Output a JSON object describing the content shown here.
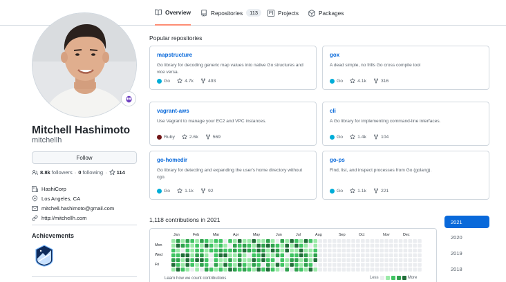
{
  "tabs": [
    {
      "label": "Overview",
      "active": true,
      "icon": "book-icon"
    },
    {
      "label": "Repositories",
      "count": "113",
      "icon": "repo-icon"
    },
    {
      "label": "Projects",
      "icon": "project-icon"
    },
    {
      "label": "Packages",
      "icon": "package-icon"
    }
  ],
  "profile": {
    "full_name": "Mitchell Hashimoto",
    "login": "mitchellh",
    "follow_label": "Follow",
    "followers": "8.8k",
    "followers_label": "followers",
    "following": "0",
    "following_label": "following",
    "stars": "114",
    "company": "HashiCorp",
    "location": "Los Angeles, CA",
    "email": "mitchell.hashimoto@gmail.com",
    "website": "http://mitchellh.com",
    "achievements_title": "Achievements"
  },
  "popular": {
    "title": "Popular repositories",
    "repos": [
      {
        "name": "mapstructure",
        "desc": "Go library for decoding generic map values into native Go structures and vice versa.",
        "lang": "Go",
        "lang_color": "#00add8",
        "stars": "4.7k",
        "forks": "493"
      },
      {
        "name": "gox",
        "desc": "A dead simple, no frills Go cross compile tool",
        "lang": "Go",
        "lang_color": "#00add8",
        "stars": "4.1k",
        "forks": "316"
      },
      {
        "name": "vagrant-aws",
        "desc": "Use Vagrant to manage your EC2 and VPC instances.",
        "lang": "Ruby",
        "lang_color": "#701516",
        "stars": "2.6k",
        "forks": "569"
      },
      {
        "name": "cli",
        "desc": "A Go library for implementing command-line interfaces.",
        "lang": "Go",
        "lang_color": "#00add8",
        "stars": "1.4k",
        "forks": "104"
      },
      {
        "name": "go-homedir",
        "desc": "Go library for detecting and expanding the user's home directory without cgo.",
        "lang": "Go",
        "lang_color": "#00add8",
        "stars": "1.1k",
        "forks": "92"
      },
      {
        "name": "go-ps",
        "desc": "Find, list, and inspect processes from Go (golang).",
        "lang": "Go",
        "lang_color": "#00add8",
        "stars": "1.1k",
        "forks": "221"
      }
    ]
  },
  "contributions": {
    "title": "1,118 contributions in 2021",
    "months": [
      "Jan",
      "Feb",
      "Mar",
      "Apr",
      "May",
      "Jun",
      "Jul",
      "Aug",
      "Sep",
      "Oct",
      "Nov",
      "Dec"
    ],
    "days": [
      "Mon",
      "Wed",
      "Fri"
    ],
    "footer": "Learn how we count contributions",
    "less": "Less",
    "more": "More",
    "level_colors": [
      "#ebedf0",
      "#9be9a8",
      "#40c463",
      "#30a14e",
      "#216e39"
    ]
  },
  "years": [
    "2021",
    "2020",
    "2019",
    "2018"
  ]
}
